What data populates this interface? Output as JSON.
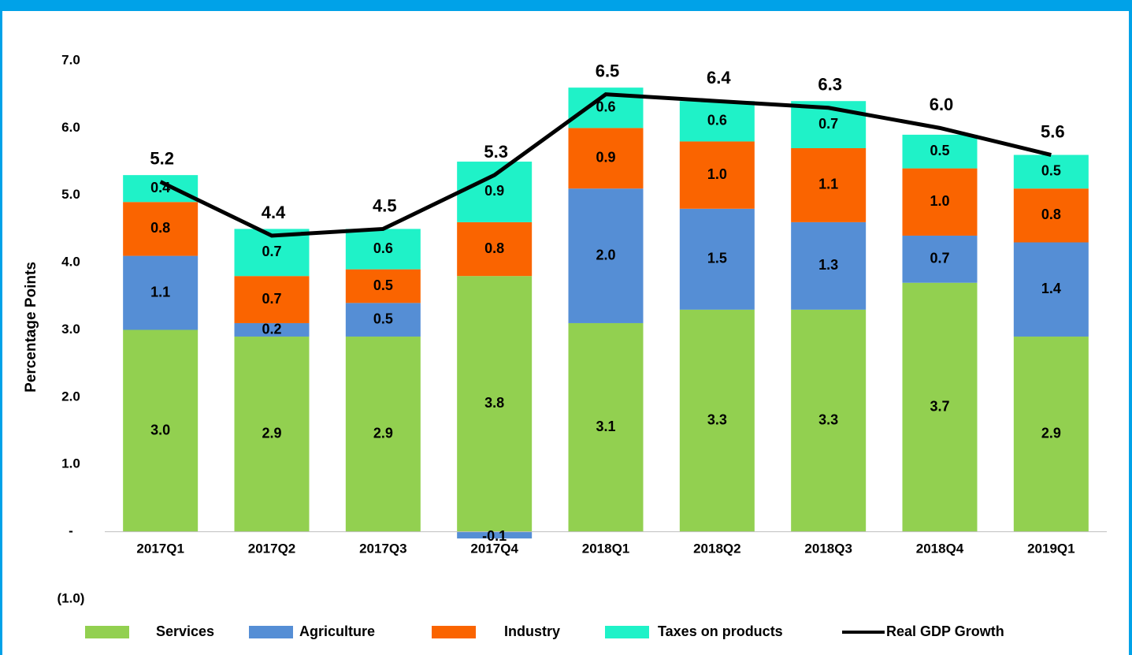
{
  "chart_data": {
    "type": "bar",
    "stacked": true,
    "y_label": "Percentage Points",
    "categories": [
      "2017Q1",
      "2017Q2",
      "2017Q3",
      "2017Q4",
      "2018Q1",
      "2018Q2",
      "2018Q3",
      "2018Q4",
      "2019Q1"
    ],
    "series": [
      {
        "name": "Services",
        "color": "#92d050",
        "values": [
          3.0,
          2.9,
          2.9,
          3.8,
          3.1,
          3.3,
          3.3,
          3.7,
          2.9
        ],
        "value_labels": [
          "3.0",
          "2.9",
          "2.9",
          "3.8",
          "3.1",
          "3.3",
          "3.3",
          "3.7",
          "2.9"
        ]
      },
      {
        "name": "Agriculture",
        "color": "#558ed5",
        "values": [
          1.1,
          0.2,
          0.5,
          -0.1,
          2.0,
          1.5,
          1.3,
          0.7,
          1.4
        ],
        "value_labels": [
          "1.1",
          "0.2",
          "0.5",
          "-0.1",
          "2.0",
          "1.5",
          "1.3",
          "0.7",
          "1.4"
        ]
      },
      {
        "name": "Industry",
        "color": "#fa6400",
        "values": [
          0.8,
          0.7,
          0.5,
          0.8,
          0.9,
          1.0,
          1.1,
          1.0,
          0.8
        ],
        "value_labels": [
          "0.8",
          "0.7",
          "0.5",
          "0.8",
          "0.9",
          "1.0",
          "1.1",
          "1.0",
          "0.8"
        ]
      },
      {
        "name": "Taxes on products",
        "color": "#1ff2c8",
        "values": [
          0.4,
          0.7,
          0.6,
          0.9,
          0.6,
          0.6,
          0.7,
          0.5,
          0.5
        ],
        "value_labels": [
          "0.4",
          "0.7",
          "0.6",
          "0.9",
          "0.6",
          "0.6",
          "0.7",
          "0.5",
          "0.5"
        ]
      },
      {
        "name": "Real GDP Growth",
        "type": "line",
        "color": "#000000",
        "values": [
          5.2,
          4.4,
          4.5,
          5.3,
          6.5,
          6.4,
          6.3,
          6.0,
          5.6
        ],
        "value_labels": [
          "5.2",
          "4.4",
          "4.5",
          "5.3",
          "6.5",
          "6.4",
          "6.3",
          "6.0",
          "5.6"
        ]
      }
    ],
    "ylim": [
      -1,
      7
    ],
    "yticks": [
      {
        "value": -1,
        "label": "(1.0)"
      },
      {
        "value": 0,
        "label": "-"
      },
      {
        "value": 1,
        "label": "1.0"
      },
      {
        "value": 2,
        "label": "2.0"
      },
      {
        "value": 3,
        "label": "3.0"
      },
      {
        "value": 4,
        "label": "4.0"
      },
      {
        "value": 5,
        "label": "5.0"
      },
      {
        "value": 6,
        "label": "6.0"
      },
      {
        "value": 7,
        "label": "7.0"
      }
    ],
    "grid": false,
    "legend": "bottom"
  }
}
